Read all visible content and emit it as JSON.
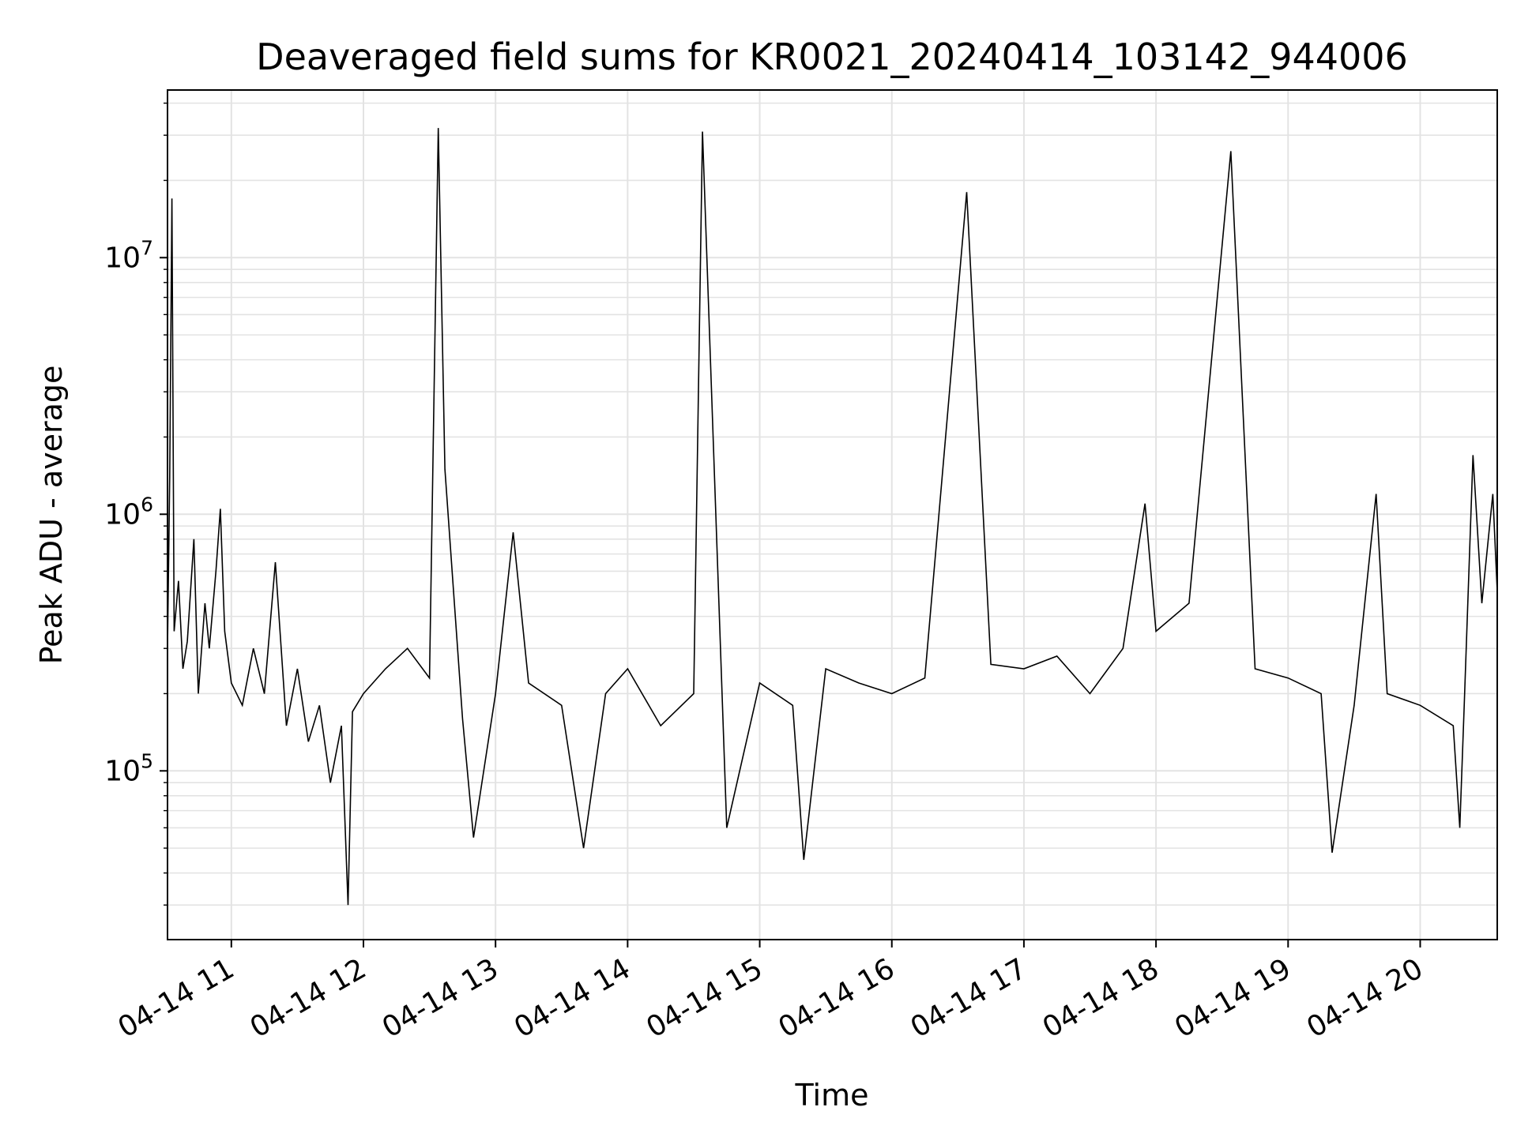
{
  "chart_data": {
    "type": "line",
    "title": "Deaveraged field sums for KR0021_20240414_103142_944006",
    "xlabel": "Time",
    "ylabel": "Peak ADU - average",
    "yscale": "log",
    "ylim": [
      22000,
      45000000
    ],
    "xlim": [
      "2024-04-14 10:31",
      "2024-04-14 20:35"
    ],
    "grid": true,
    "line_color": "#000000",
    "x_ticks": [
      {
        "time": "2024-04-14 11:00",
        "label": "04-14 11"
      },
      {
        "time": "2024-04-14 12:00",
        "label": "04-14 12"
      },
      {
        "time": "2024-04-14 13:00",
        "label": "04-14 13"
      },
      {
        "time": "2024-04-14 14:00",
        "label": "04-14 14"
      },
      {
        "time": "2024-04-14 15:00",
        "label": "04-14 15"
      },
      {
        "time": "2024-04-14 16:00",
        "label": "04-14 16"
      },
      {
        "time": "2024-04-14 17:00",
        "label": "04-14 17"
      },
      {
        "time": "2024-04-14 18:00",
        "label": "04-14 18"
      },
      {
        "time": "2024-04-14 19:00",
        "label": "04-14 19"
      },
      {
        "time": "2024-04-14 20:00",
        "label": "04-14 20"
      }
    ],
    "y_ticks": [
      {
        "value": 100000,
        "base": "10",
        "exp": "5"
      },
      {
        "value": 1000000,
        "base": "10",
        "exp": "6"
      },
      {
        "value": 10000000,
        "base": "10",
        "exp": "7"
      }
    ],
    "series": [
      {
        "points": [
          [
            "2024-04-14 10:31",
            300000
          ],
          [
            "2024-04-14 10:32",
            1400000
          ],
          [
            "2024-04-14 10:33",
            17000000
          ],
          [
            "2024-04-14 10:34",
            350000
          ],
          [
            "2024-04-14 10:36",
            550000
          ],
          [
            "2024-04-14 10:38",
            250000
          ],
          [
            "2024-04-14 10:40",
            320000
          ],
          [
            "2024-04-14 10:43",
            800000
          ],
          [
            "2024-04-14 10:45",
            200000
          ],
          [
            "2024-04-14 10:48",
            450000
          ],
          [
            "2024-04-14 10:50",
            300000
          ],
          [
            "2024-04-14 10:53",
            600000
          ],
          [
            "2024-04-14 10:55",
            1050000
          ],
          [
            "2024-04-14 10:57",
            350000
          ],
          [
            "2024-04-14 11:00",
            220000
          ],
          [
            "2024-04-14 11:05",
            180000
          ],
          [
            "2024-04-14 11:10",
            300000
          ],
          [
            "2024-04-14 11:15",
            200000
          ],
          [
            "2024-04-14 11:20",
            650000
          ],
          [
            "2024-04-14 11:25",
            150000
          ],
          [
            "2024-04-14 11:30",
            250000
          ],
          [
            "2024-04-14 11:35",
            130000
          ],
          [
            "2024-04-14 11:40",
            180000
          ],
          [
            "2024-04-14 11:45",
            90000
          ],
          [
            "2024-04-14 11:50",
            150000
          ],
          [
            "2024-04-14 11:53",
            30000
          ],
          [
            "2024-04-14 11:55",
            170000
          ],
          [
            "2024-04-14 12:00",
            200000
          ],
          [
            "2024-04-14 12:10",
            250000
          ],
          [
            "2024-04-14 12:20",
            300000
          ],
          [
            "2024-04-14 12:30",
            230000
          ],
          [
            "2024-04-14 12:34",
            32000000
          ],
          [
            "2024-04-14 12:37",
            1500000
          ],
          [
            "2024-04-14 12:45",
            160000
          ],
          [
            "2024-04-14 12:50",
            55000
          ],
          [
            "2024-04-14 13:00",
            200000
          ],
          [
            "2024-04-14 13:08",
            850000
          ],
          [
            "2024-04-14 13:15",
            220000
          ],
          [
            "2024-04-14 13:30",
            180000
          ],
          [
            "2024-04-14 13:40",
            50000
          ],
          [
            "2024-04-14 13:50",
            200000
          ],
          [
            "2024-04-14 14:00",
            250000
          ],
          [
            "2024-04-14 14:15",
            150000
          ],
          [
            "2024-04-14 14:30",
            200000
          ],
          [
            "2024-04-14 14:34",
            31000000
          ],
          [
            "2024-04-14 14:45",
            60000
          ],
          [
            "2024-04-14 15:00",
            220000
          ],
          [
            "2024-04-14 15:15",
            180000
          ],
          [
            "2024-04-14 15:20",
            45000
          ],
          [
            "2024-04-14 15:30",
            250000
          ],
          [
            "2024-04-14 15:45",
            220000
          ],
          [
            "2024-04-14 16:00",
            200000
          ],
          [
            "2024-04-14 16:15",
            230000
          ],
          [
            "2024-04-14 16:34",
            18000000
          ],
          [
            "2024-04-14 16:45",
            260000
          ],
          [
            "2024-04-14 17:00",
            250000
          ],
          [
            "2024-04-14 17:15",
            280000
          ],
          [
            "2024-04-14 17:30",
            200000
          ],
          [
            "2024-04-14 17:45",
            300000
          ],
          [
            "2024-04-14 17:55",
            1100000
          ],
          [
            "2024-04-14 18:00",
            350000
          ],
          [
            "2024-04-14 18:15",
            450000
          ],
          [
            "2024-04-14 18:34",
            26000000
          ],
          [
            "2024-04-14 18:45",
            250000
          ],
          [
            "2024-04-14 19:00",
            230000
          ],
          [
            "2024-04-14 19:15",
            200000
          ],
          [
            "2024-04-14 19:20",
            48000
          ],
          [
            "2024-04-14 19:30",
            180000
          ],
          [
            "2024-04-14 19:40",
            1200000
          ],
          [
            "2024-04-14 19:45",
            200000
          ],
          [
            "2024-04-14 20:00",
            180000
          ],
          [
            "2024-04-14 20:15",
            150000
          ],
          [
            "2024-04-14 20:18",
            60000
          ],
          [
            "2024-04-14 20:20",
            180000
          ],
          [
            "2024-04-14 20:24",
            1700000
          ],
          [
            "2024-04-14 20:28",
            450000
          ],
          [
            "2024-04-14 20:33",
            1200000
          ],
          [
            "2024-04-14 20:35",
            500000
          ]
        ]
      }
    ]
  }
}
